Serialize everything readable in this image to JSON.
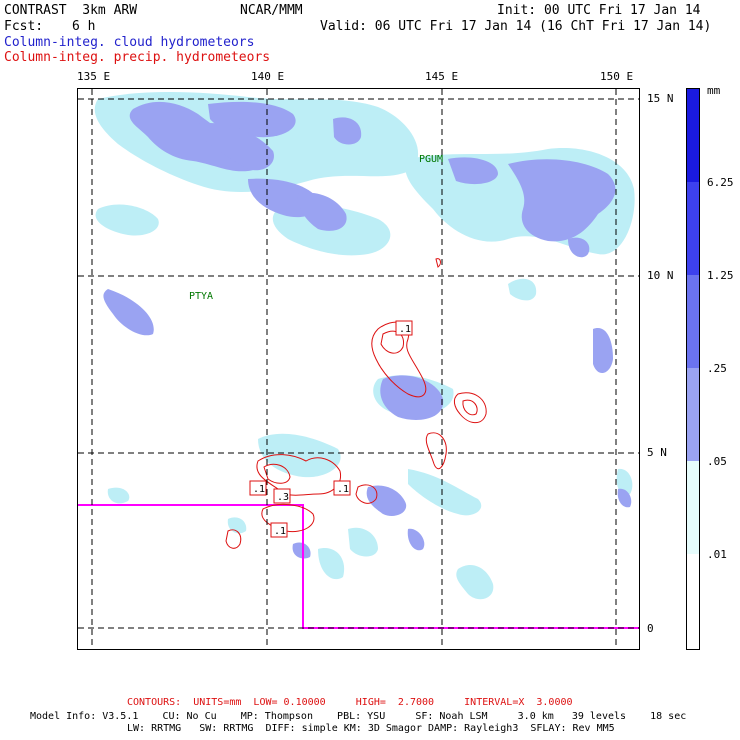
{
  "header": {
    "model": "CONTRAST  3km ARW",
    "org": "NCAR/MMM",
    "init": "Init: 00 UTC Fri 17 Jan 14",
    "fcst_label": "Fcst:",
    "fcst_value": "6 h",
    "valid": "Valid: 06 UTC Fri 17 Jan 14 (16 ChT Fri 17 Jan 14)",
    "field_cloud": "Column-integ. cloud hydrometeors",
    "field_precip": "Column-integ. precip. hydrometeors"
  },
  "map": {
    "lon_labels": [
      "135 E",
      "140 E",
      "145 E",
      "150 E"
    ],
    "lat_labels": [
      "15 N",
      "10 N",
      "5 N",
      "0"
    ],
    "places": [
      "PGUM",
      "PTYA"
    ],
    "contour_labels": [
      ".1",
      ".1",
      ".1",
      ".3",
      ".1"
    ],
    "colors": {
      "level_1": "#e6fcfc",
      "level_2": "#bdeef6",
      "level_3": "#9aa3f2",
      "level_4": "#6b73f0",
      "level_5": "#3d41ee",
      "level_6": "#1a1ae0",
      "precip_contour": "#dd1111",
      "domain_box": "#ff00ff"
    }
  },
  "colorbar": {
    "unit": "mm",
    "labels": [
      "6.25",
      "1.25",
      ".25",
      ".05",
      ".01"
    ]
  },
  "footer": {
    "contours": "CONTOURS:  UNITS=mm  LOW= 0.10000     HIGH=  2.7000     INTERVAL=X  3.0000",
    "line1": "Model Info: V3.5.1    CU: No Cu    MP: Thompson    PBL: YSU     SF: Noah LSM     3.0 km   39 levels    18 sec",
    "line2": "LW: RRTMG   SW: RRTMG  DIFF: simple KM: 3D Smagor DAMP: Rayleigh3  SFLAY: Rev MM5"
  }
}
